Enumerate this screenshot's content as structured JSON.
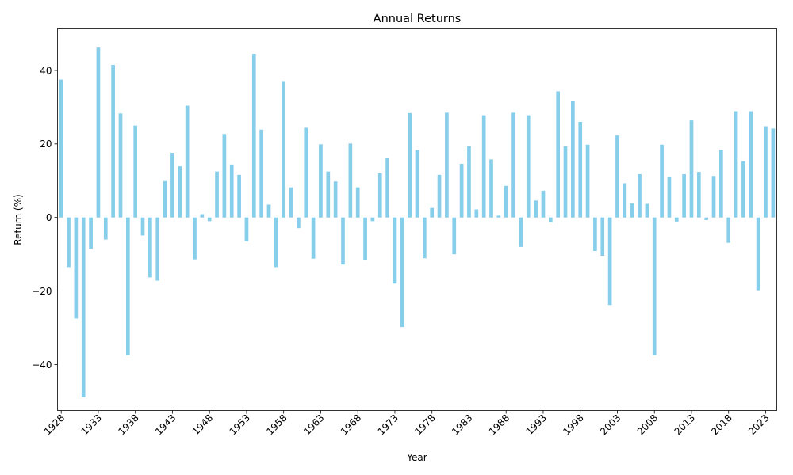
{
  "chart_data": {
    "type": "bar",
    "title": "Annual Returns",
    "xlabel": "Year",
    "ylabel": "Return (%)",
    "ylim": [
      -52.5,
      51.3
    ],
    "yticks": [
      -40,
      -20,
      0,
      20,
      40
    ],
    "ytick_labels": [
      "−40",
      "−20",
      "0",
      "20",
      "40"
    ],
    "xtick_labels": [
      "1928",
      "1933",
      "1938",
      "1943",
      "1948",
      "1953",
      "1958",
      "1963",
      "1968",
      "1973",
      "1978",
      "1983",
      "1988",
      "1993",
      "1998",
      "2003",
      "2008",
      "2013",
      "2018",
      "2023"
    ],
    "bar_color": "#87ceeb",
    "grid": false,
    "categories": [
      1928,
      1929,
      1930,
      1931,
      1932,
      1933,
      1934,
      1935,
      1936,
      1937,
      1938,
      1939,
      1940,
      1941,
      1942,
      1943,
      1944,
      1945,
      1946,
      1947,
      1948,
      1949,
      1950,
      1951,
      1952,
      1953,
      1954,
      1955,
      1956,
      1957,
      1958,
      1959,
      1960,
      1961,
      1962,
      1963,
      1964,
      1965,
      1966,
      1967,
      1968,
      1969,
      1970,
      1971,
      1972,
      1973,
      1974,
      1975,
      1976,
      1977,
      1978,
      1979,
      1980,
      1981,
      1982,
      1983,
      1984,
      1985,
      1986,
      1987,
      1988,
      1989,
      1990,
      1991,
      1992,
      1993,
      1994,
      1995,
      1996,
      1997,
      1998,
      1999,
      2000,
      2001,
      2002,
      2003,
      2004,
      2005,
      2006,
      2007,
      2008,
      2009,
      2010,
      2011,
      2012,
      2013,
      2014,
      2015,
      2016,
      2017,
      2018,
      2019,
      2020,
      2021,
      2022,
      2023,
      2024
    ],
    "values": [
      37.5,
      -13.5,
      -27.5,
      -48.9,
      -8.5,
      46.2,
      -6.0,
      41.5,
      28.3,
      -37.5,
      25.0,
      -4.9,
      -16.3,
      -17.2,
      9.9,
      17.6,
      13.9,
      30.4,
      -11.4,
      0.9,
      -1.0,
      12.5,
      22.7,
      14.4,
      11.6,
      -6.5,
      44.5,
      23.9,
      3.5,
      -13.5,
      37.1,
      8.2,
      -2.9,
      24.4,
      -11.2,
      19.9,
      12.5,
      9.8,
      -12.8,
      20.1,
      8.2,
      -11.5,
      -1.0,
      12.0,
      16.1,
      -18.0,
      -29.8,
      28.4,
      18.3,
      -11.1,
      2.6,
      11.6,
      28.5,
      -10.0,
      14.6,
      19.4,
      2.2,
      27.8,
      15.8,
      0.5,
      8.6,
      28.5,
      -8.0,
      27.8,
      4.6,
      7.3,
      -1.3,
      34.3,
      19.4,
      31.6,
      26.0,
      19.8,
      -9.1,
      -10.4,
      -23.8,
      22.3,
      9.3,
      3.8,
      11.8,
      3.7,
      -37.5,
      19.8,
      11.0,
      -1.1,
      11.8,
      26.4,
      12.4,
      -0.7,
      11.3,
      18.4,
      -6.9,
      28.9,
      15.3,
      28.9,
      -19.8,
      24.8,
      24.2
    ]
  }
}
